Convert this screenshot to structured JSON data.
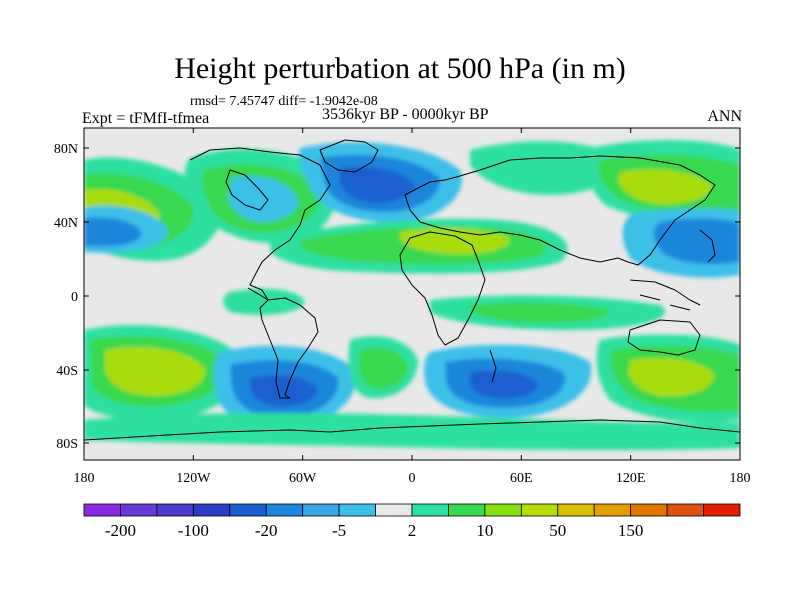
{
  "title": "Height perturbation at 500 hPa (in m)",
  "stats": "rmsd= 7.45747 diff= -1.9042e-08",
  "experiment": "Expt = tFMfI-tfmea",
  "period": "3536kyr BP - 0000kyr BP",
  "season": "ANN",
  "lat_labels": [
    "80N",
    "40N",
    "0",
    "40S",
    "80S"
  ],
  "lon_labels": [
    "180",
    "120W",
    "60W",
    "0",
    "60E",
    "120E",
    "180"
  ],
  "colorbar": {
    "colors": [
      "#8a2be2",
      "#6a3ad8",
      "#4b3ccc",
      "#2a3ec8",
      "#1d5fd0",
      "#1e86db",
      "#3aa6e6",
      "#3cc0e8",
      "#e8e8e8",
      "#2fe0a0",
      "#38d850",
      "#88e010",
      "#b8dc08",
      "#d8c000",
      "#e4a000",
      "#e07800",
      "#e05010",
      "#e02000"
    ],
    "labels": [
      "-200",
      "-100",
      "-20",
      "-5",
      "2",
      "10",
      "50",
      "150"
    ]
  },
  "colors": {
    "neutral": "#e8e8e8",
    "teal": "#2fe0a0",
    "green": "#38d850",
    "yellowgreen": "#a8dc10",
    "lightblue": "#3cc0e8",
    "midblue": "#1e86db",
    "blue": "#1d5fd0",
    "coast": "#000000"
  }
}
